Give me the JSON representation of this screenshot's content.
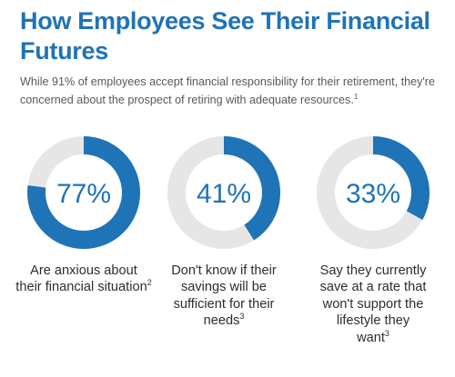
{
  "page": {
    "title": "How Employees See Their Financial Futures",
    "subtitle": "While 91% of employees accept financial responsibility for their retirement, they're concerned about the prospect of retiring with adequate resources.",
    "subtitle_note": "1"
  },
  "colors": {
    "accent": "#1f73b7",
    "track": "#e6e6e6",
    "text": "#2a2e33"
  },
  "chart_data": {
    "type": "pie",
    "variant": "donut",
    "max": 100,
    "items": [
      {
        "value": 77,
        "label": "77%",
        "caption": "Are anxious about their financial situation",
        "note": "2"
      },
      {
        "value": 41,
        "label": "41%",
        "caption": "Don't know if their savings will be sufficient for their needs",
        "note": "3"
      },
      {
        "value": 33,
        "label": "33%",
        "caption": "Say they currently save at a rate that won't support the lifestyle they want",
        "note": "3"
      }
    ]
  }
}
